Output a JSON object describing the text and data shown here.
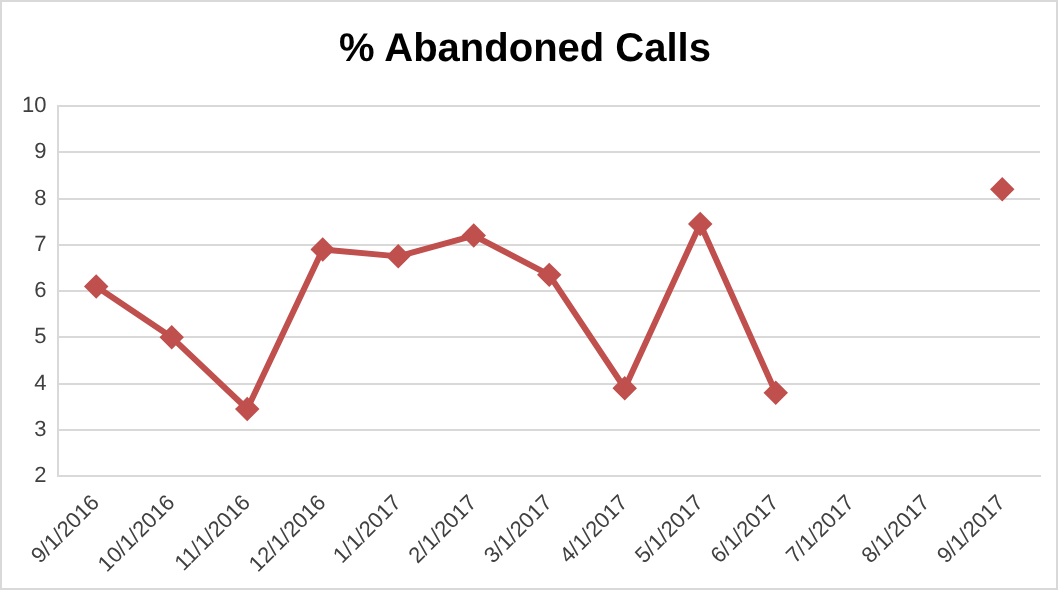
{
  "chart_data": {
    "type": "line",
    "title": "% Abandoned Calls",
    "categories": [
      "9/1/2016",
      "10/1/2016",
      "11/1/2016",
      "12/1/2016",
      "1/1/2017",
      "2/1/2017",
      "3/1/2017",
      "4/1/2017",
      "5/1/2017",
      "6/1/2017",
      "7/1/2017",
      "8/1/2017",
      "9/1/2017"
    ],
    "series": [
      {
        "color": "#c0504d",
        "values": [
          6.1,
          5.0,
          3.45,
          6.9,
          6.75,
          7.2,
          6.35,
          3.9,
          7.45,
          3.8,
          null,
          null,
          8.2
        ]
      }
    ],
    "ylim": [
      2,
      10
    ],
    "yticks": [
      2,
      3,
      4,
      5,
      6,
      7,
      8,
      9,
      10
    ],
    "grid": "y",
    "legend": false,
    "marker": "diamond",
    "line_style": "solid"
  }
}
